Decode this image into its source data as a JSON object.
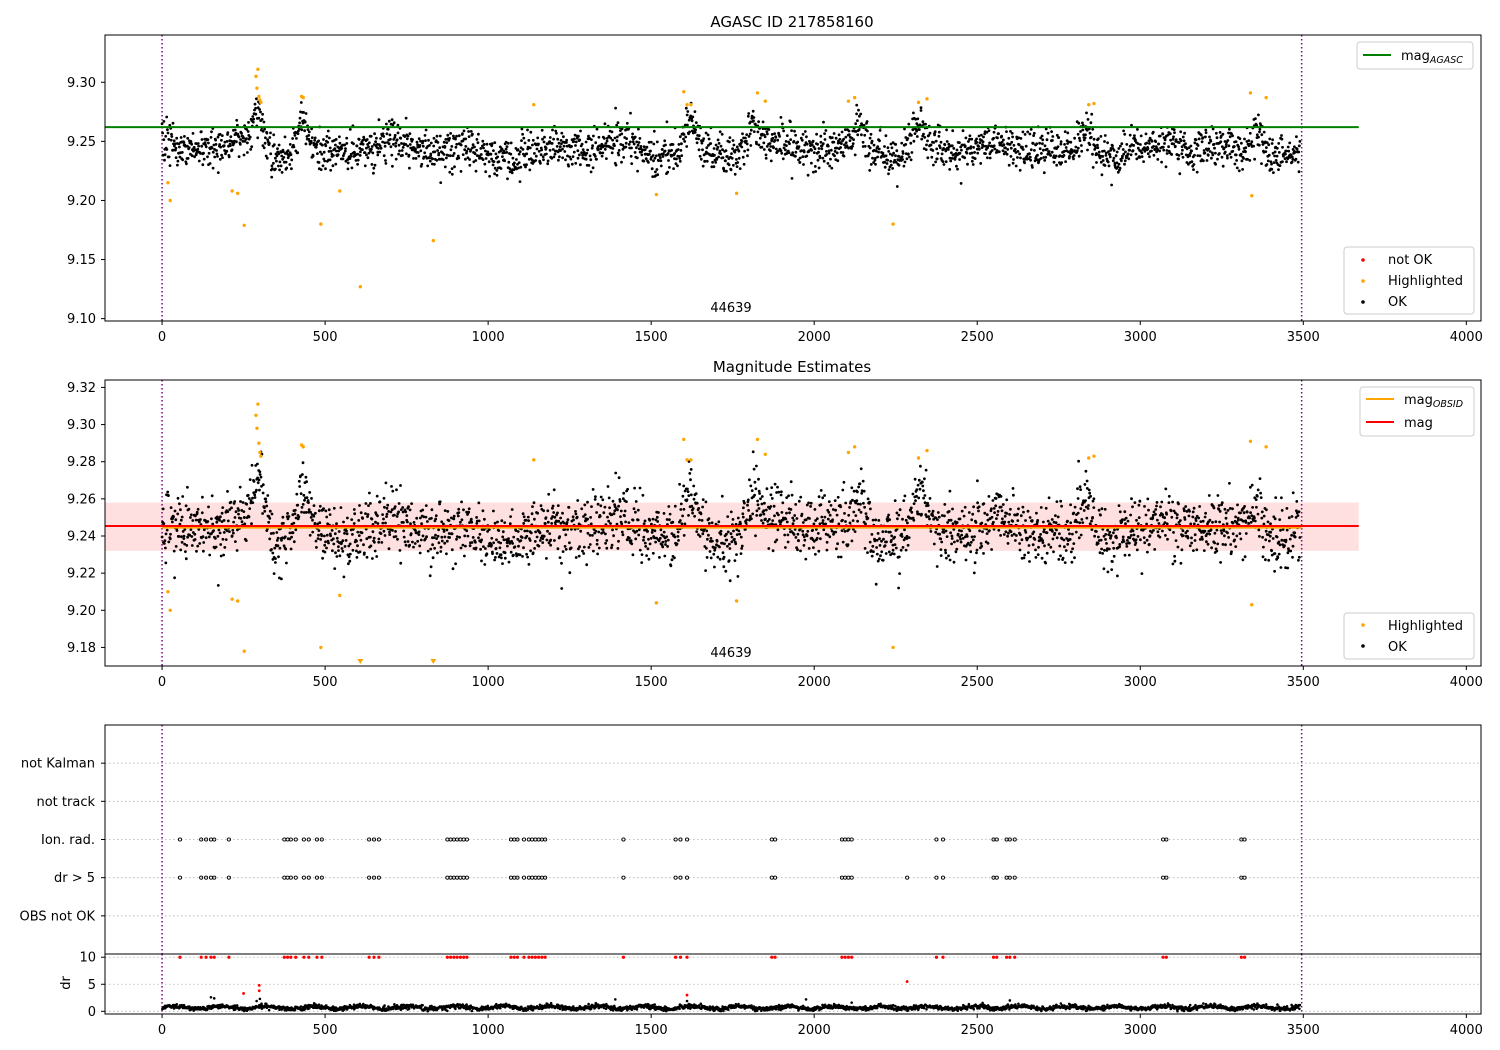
{
  "chart_data": [
    {
      "type": "scatter",
      "title": "AGASC ID 217858160",
      "xlim": [
        -175,
        4045
      ],
      "ylim": [
        9.098,
        9.34
      ],
      "xticks": [
        0,
        500,
        1000,
        1500,
        2000,
        2500,
        3000,
        3500,
        4000
      ],
      "yticks": [
        9.1,
        9.15,
        9.2,
        9.25,
        9.3
      ],
      "ytick_labels": [
        "9.10",
        "9.15",
        "9.20",
        "9.25",
        "9.30"
      ],
      "grid": false,
      "obsid_boundaries": [
        0,
        3495
      ],
      "obsid_label": "44639",
      "reference_lines": [
        {
          "name": "mag_AGASC",
          "y": 9.262,
          "x_range": [
            -175,
            3670
          ],
          "color": "#008000"
        }
      ],
      "band": null,
      "baseline": {
        "mean": 9.243,
        "sd": 0.011
      },
      "bumps": [
        [
          295,
          9.272
        ],
        [
          430,
          9.268
        ],
        [
          1620,
          9.268
        ],
        [
          1810,
          9.262
        ],
        [
          2140,
          9.263
        ],
        [
          2320,
          9.265
        ],
        [
          2830,
          9.262
        ],
        [
          3360,
          9.262
        ]
      ],
      "highlighted_points": [
        [
          18,
          9.215
        ],
        [
          25,
          9.2
        ],
        [
          215,
          9.208
        ],
        [
          232,
          9.206
        ],
        [
          252,
          9.179
        ],
        [
          288,
          9.305
        ],
        [
          291,
          9.295
        ],
        [
          294,
          9.311
        ],
        [
          297,
          9.288
        ],
        [
          300,
          9.285
        ],
        [
          303,
          9.283
        ],
        [
          428,
          9.288
        ],
        [
          433,
          9.287
        ],
        [
          487,
          9.18
        ],
        [
          545,
          9.208
        ],
        [
          608,
          9.127
        ],
        [
          832,
          9.166
        ],
        [
          1140,
          9.281
        ],
        [
          1516,
          9.205
        ],
        [
          1600,
          9.292
        ],
        [
          1610,
          9.281
        ],
        [
          1622,
          9.281
        ],
        [
          1762,
          9.206
        ],
        [
          1826,
          9.291
        ],
        [
          1850,
          9.284
        ],
        [
          2105,
          9.284
        ],
        [
          2124,
          9.287
        ],
        [
          2242,
          9.18
        ],
        [
          2320,
          9.283
        ],
        [
          2346,
          9.286
        ],
        [
          2842,
          9.281
        ],
        [
          2858,
          9.282
        ],
        [
          3338,
          9.291
        ],
        [
          3342,
          9.204
        ],
        [
          3386,
          9.287
        ]
      ],
      "legend": {
        "position": "lower-right",
        "entries": [
          {
            "label": "not OK",
            "color": "#ff0000"
          },
          {
            "label": "Highlighted",
            "color": "#ffa500"
          },
          {
            "label": "OK",
            "color": "#000000"
          }
        ]
      },
      "legend2": {
        "position": "upper-right",
        "entries": [
          {
            "label": "mag",
            "sub": "AGASC",
            "color": "#008000"
          }
        ]
      }
    },
    {
      "type": "scatter",
      "title": "Magnitude Estimates",
      "xlim": [
        -175,
        4045
      ],
      "ylim": [
        9.17,
        9.324
      ],
      "xticks": [
        0,
        500,
        1000,
        1500,
        2000,
        2500,
        3000,
        3500,
        4000
      ],
      "yticks": [
        9.18,
        9.2,
        9.22,
        9.24,
        9.26,
        9.28,
        9.3,
        9.32
      ],
      "ytick_labels": [
        "9.18",
        "9.20",
        "9.22",
        "9.24",
        "9.26",
        "9.28",
        "9.30",
        "9.32"
      ],
      "grid": false,
      "obsid_boundaries": [
        0,
        3495
      ],
      "obsid_label": "44639",
      "reference_lines": [
        {
          "name": "mag_OBSID",
          "y": 9.2445,
          "x_range": [
            0,
            3495
          ],
          "color": "#ffa500"
        },
        {
          "name": "mag",
          "y": 9.2454,
          "x_range": [
            -175,
            3670
          ],
          "color": "#ff0000"
        }
      ],
      "band": {
        "y_range": [
          9.232,
          9.258
        ],
        "x_range": [
          -175,
          3670
        ]
      },
      "baseline": {
        "mean": 9.243,
        "sd": 0.011
      },
      "bumps": [
        [
          295,
          9.272
        ],
        [
          430,
          9.268
        ],
        [
          1620,
          9.268
        ],
        [
          1810,
          9.262
        ],
        [
          2140,
          9.263
        ],
        [
          2320,
          9.265
        ],
        [
          2830,
          9.262
        ],
        [
          3360,
          9.262
        ]
      ],
      "highlighted_points": [
        [
          18,
          9.21
        ],
        [
          25,
          9.2
        ],
        [
          215,
          9.206
        ],
        [
          232,
          9.205
        ],
        [
          252,
          9.178
        ],
        [
          288,
          9.305
        ],
        [
          291,
          9.298
        ],
        [
          294,
          9.311
        ],
        [
          297,
          9.29
        ],
        [
          300,
          9.285
        ],
        [
          303,
          9.283
        ],
        [
          428,
          9.289
        ],
        [
          433,
          9.288
        ],
        [
          487,
          9.18
        ],
        [
          545,
          9.208
        ],
        [
          1140,
          9.281
        ],
        [
          1516,
          9.204
        ],
        [
          1600,
          9.292
        ],
        [
          1610,
          9.281
        ],
        [
          1622,
          9.281
        ],
        [
          1762,
          9.205
        ],
        [
          1826,
          9.292
        ],
        [
          1850,
          9.284
        ],
        [
          2105,
          9.285
        ],
        [
          2124,
          9.288
        ],
        [
          2242,
          9.18
        ],
        [
          2320,
          9.282
        ],
        [
          2346,
          9.286
        ],
        [
          2842,
          9.282
        ],
        [
          2858,
          9.283
        ],
        [
          3338,
          9.291
        ],
        [
          3342,
          9.203
        ],
        [
          3386,
          9.288
        ]
      ],
      "offscale_low": [
        608,
        832
      ],
      "legend": {
        "position": "lower-right",
        "entries": [
          {
            "label": "Highlighted",
            "color": "#ffa500"
          },
          {
            "label": "OK",
            "color": "#000000"
          }
        ]
      },
      "legend2": {
        "position": "upper-right",
        "entries": [
          {
            "label": "mag",
            "sub": "OBSID",
            "color": "#ffa500"
          },
          {
            "label": "mag",
            "sub": "",
            "color": "#ff0000"
          }
        ]
      }
    },
    {
      "type": "scatter",
      "title": "",
      "xlim": [
        -175,
        4045
      ],
      "categories": [
        "OBS not OK",
        "dr > 5",
        "Ion. rad.",
        "not track",
        "not Kalman"
      ],
      "grid": true,
      "obsid_boundaries": [
        0,
        3495
      ],
      "flag_times": {
        "dr > 5": [
          55,
          120,
          135,
          150,
          160,
          205,
          375,
          385,
          395,
          410,
          435,
          450,
          475,
          490,
          635,
          650,
          665,
          875,
          885,
          895,
          905,
          915,
          925,
          935,
          1070,
          1080,
          1090,
          1110,
          1125,
          1135,
          1145,
          1155,
          1165,
          1175,
          1415,
          1575,
          1590,
          1610,
          1870,
          1880,
          2085,
          2095,
          2105,
          2115,
          2285,
          2375,
          2395,
          2550,
          2560,
          2590,
          2600,
          2615,
          3070,
          3080,
          3310,
          3320
        ],
        "Ion. rad.": [
          55,
          120,
          135,
          150,
          160,
          205,
          375,
          385,
          395,
          410,
          435,
          450,
          475,
          490,
          635,
          650,
          665,
          875,
          885,
          895,
          905,
          915,
          925,
          935,
          1070,
          1080,
          1090,
          1110,
          1125,
          1135,
          1145,
          1155,
          1165,
          1175,
          1415,
          1575,
          1590,
          1610,
          1870,
          1880,
          2085,
          2095,
          2105,
          2115,
          2375,
          2395,
          2550,
          2560,
          2590,
          2600,
          2615,
          3070,
          3080,
          3310,
          3320
        ]
      }
    },
    {
      "type": "scatter",
      "title": "",
      "ylabel": "dr",
      "xlim": [
        -175,
        4045
      ],
      "ylim": [
        -0.5,
        10.6
      ],
      "xticks": [
        0,
        500,
        1000,
        1500,
        2000,
        2500,
        3000,
        3500,
        4000
      ],
      "yticks": [
        0,
        5,
        10
      ],
      "ytick_labels": [
        "0",
        "5",
        "10"
      ],
      "grid": true,
      "obsid_boundaries": [
        0,
        3495
      ],
      "threshold": 10,
      "capped_times": [
        55,
        120,
        135,
        150,
        160,
        205,
        375,
        385,
        395,
        410,
        435,
        450,
        475,
        490,
        635,
        650,
        665,
        875,
        885,
        895,
        905,
        915,
        925,
        935,
        1070,
        1080,
        1090,
        1110,
        1125,
        1135,
        1145,
        1155,
        1165,
        1175,
        1415,
        1575,
        1590,
        1610,
        1870,
        1880,
        2085,
        2095,
        2105,
        2115,
        2375,
        2395,
        2550,
        2560,
        2590,
        2600,
        2615,
        3070,
        3080,
        3310,
        3320
      ],
      "red_points": [
        [
          250,
          3.3
        ],
        [
          298,
          4.8
        ],
        [
          298,
          3.8
        ],
        [
          1610,
          3.0
        ],
        [
          2285,
          5.5
        ]
      ],
      "baseline": {
        "mean": 0.7,
        "sd": 0.35
      }
    }
  ]
}
